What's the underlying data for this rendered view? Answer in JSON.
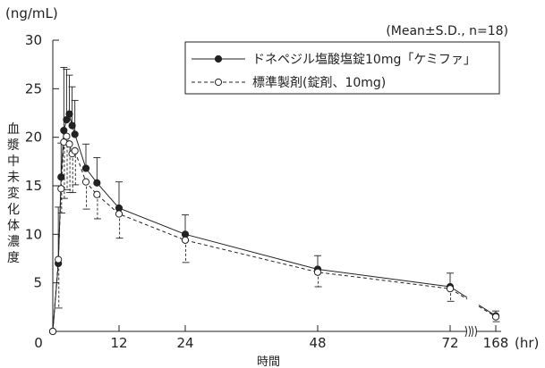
{
  "chart_data": {
    "type": "line",
    "y_unit": "(ng/mL)",
    "x_unit": "(hr)",
    "xlabel": "時間",
    "ylabel": "血漿中未変化体濃度",
    "note": "(Mean±S.D., n=18)",
    "ylim": [
      0,
      30
    ],
    "y_ticks": [
      0,
      5,
      10,
      15,
      20,
      25,
      30
    ],
    "x_ticks": [
      0,
      12,
      24,
      48,
      72,
      168
    ],
    "axis_break": "between 72 and 168",
    "grid": false,
    "legend_position": "top-right",
    "series": [
      {
        "name": "ドネペジル塩酸塩錠10mg「ケミファ」",
        "marker": "filled-circle",
        "line": "solid",
        "x": [
          0,
          1,
          1.5,
          2,
          2.5,
          3,
          3.5,
          4,
          6,
          8,
          12,
          24,
          48,
          72,
          168
        ],
        "y": [
          0,
          7.0,
          15.9,
          20.7,
          21.8,
          22.4,
          21.2,
          20.3,
          16.8,
          15.3,
          12.7,
          10.0,
          6.4,
          4.6,
          1.6
        ],
        "sd": [
          0,
          5.8,
          3.5,
          6.5,
          5.2,
          4.0,
          4.0,
          3.5,
          2.5,
          2.6,
          2.7,
          2.0,
          1.4,
          1.4,
          0.5
        ]
      },
      {
        "name": "標準製剤(錠剤、10mg)",
        "marker": "open-circle",
        "line": "dashed",
        "x": [
          0,
          1,
          1.5,
          2,
          2.5,
          3,
          3.5,
          4,
          6,
          8,
          12,
          24,
          48,
          72,
          168
        ],
        "y": [
          0,
          7.4,
          14.7,
          19.5,
          20.1,
          19.3,
          18.3,
          18.6,
          15.4,
          14.1,
          12.1,
          9.4,
          6.1,
          4.4,
          1.5
        ],
        "sd": [
          0,
          5.0,
          2.5,
          5.8,
          5.5,
          5.0,
          4.0,
          3.5,
          2.8,
          2.5,
          2.5,
          2.3,
          1.5,
          1.3,
          0.5
        ]
      }
    ]
  }
}
